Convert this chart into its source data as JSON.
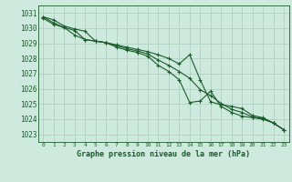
{
  "bg_color": "#ceeade",
  "grid_color": "#aaccbb",
  "line_color": "#1a5c2a",
  "title": "Graphe pression niveau de la mer (hPa)",
  "xlim": [
    -0.5,
    23.5
  ],
  "ylim": [
    1022.5,
    1031.5
  ],
  "yticks": [
    1023,
    1024,
    1025,
    1026,
    1027,
    1028,
    1029,
    1030,
    1031
  ],
  "xticks": [
    0,
    1,
    2,
    3,
    4,
    5,
    6,
    7,
    8,
    9,
    10,
    11,
    12,
    13,
    14,
    15,
    16,
    17,
    18,
    19,
    20,
    21,
    22,
    23
  ],
  "series": [
    [
      1030.75,
      1030.55,
      1030.15,
      1029.95,
      1029.8,
      1029.15,
      1029.05,
      1028.9,
      1028.75,
      1028.6,
      1028.45,
      1028.25,
      1028.0,
      1027.65,
      1028.25,
      1026.6,
      1025.15,
      1024.95,
      1024.85,
      1024.7,
      1024.25,
      1024.1,
      1023.75,
      1023.3
    ],
    [
      1030.75,
      1030.35,
      1030.05,
      1029.55,
      1029.25,
      1029.15,
      1029.05,
      1028.75,
      1028.55,
      1028.4,
      1028.15,
      1027.55,
      1027.15,
      1026.6,
      1025.1,
      1025.2,
      1025.85,
      1024.85,
      1024.45,
      1024.2,
      1024.1,
      1024.0,
      1023.75,
      1023.3
    ],
    [
      1030.65,
      1030.25,
      1030.05,
      1029.85,
      1029.25,
      1029.15,
      1029.05,
      1028.85,
      1028.65,
      1028.5,
      1028.3,
      1027.9,
      1027.55,
      1027.15,
      1026.7,
      1025.95,
      1025.55,
      1025.05,
      1024.65,
      1024.45,
      1024.15,
      1024.05,
      1023.75,
      1023.3
    ]
  ]
}
